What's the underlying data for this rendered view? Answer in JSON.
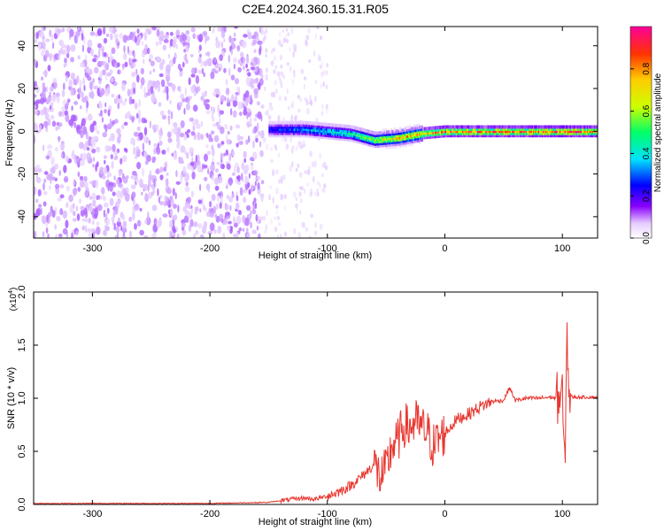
{
  "title": "C2E4.2024.360.15.31.R05",
  "chart_data": [
    {
      "type": "heatmap",
      "title": "C2E4.2024.360.15.31.R05",
      "xlabel": "Height of straight line (km)",
      "ylabel": "Frequency (Hz)",
      "xlim": [
        -350,
        130
      ],
      "ylim": [
        -50,
        49
      ],
      "x_ticks": [
        -300,
        -200,
        -100,
        0,
        100
      ],
      "y_ticks": [
        -40,
        -20,
        0,
        20,
        40
      ],
      "colorbar": {
        "label": "Normalized spectral amplitude",
        "range": [
          0,
          1
        ],
        "ticks": [
          0.0,
          0.2,
          0.4,
          0.6,
          0.8
        ],
        "colormap": [
          "#ffffff",
          "#d8b4ff",
          "#7a00ff",
          "#0000ff",
          "#00e0ff",
          "#00ff66",
          "#ccff00",
          "#ffcc00",
          "#ff3300",
          "#ff0099"
        ]
      },
      "features": {
        "noise_region_x": [
          -350,
          -155
        ],
        "sparse_noise_region_x": [
          -155,
          -100
        ],
        "signal_start_x": -152,
        "signal_band_frequency": 0,
        "signal_trace": [
          {
            "x": -150,
            "freq": 1,
            "amp": 0.35
          },
          {
            "x": -120,
            "freq": 1,
            "amp": 0.45
          },
          {
            "x": -100,
            "freq": 0,
            "amp": 0.5
          },
          {
            "x": -80,
            "freq": -1,
            "amp": 0.55
          },
          {
            "x": -60,
            "freq": -4,
            "amp": 0.7
          },
          {
            "x": -40,
            "freq": -3,
            "amp": 0.8
          },
          {
            "x": -20,
            "freq": -1,
            "amp": 0.85
          },
          {
            "x": 0,
            "freq": 0,
            "amp": 0.9
          },
          {
            "x": 50,
            "freq": 0,
            "amp": 0.9
          },
          {
            "x": 100,
            "freq": 0,
            "amp": 0.95
          },
          {
            "x": 130,
            "freq": 0,
            "amp": 0.9
          }
        ]
      }
    },
    {
      "type": "line",
      "xlabel": "Height of straight line (km)",
      "ylabel": "SNR (10 * v/v)",
      "y_multiplier": "(x10",
      "y_multiplier_exp": "4",
      "xlim": [
        -350,
        130
      ],
      "ylim": [
        0,
        2.0
      ],
      "x_ticks": [
        -300,
        -200,
        -100,
        0,
        100
      ],
      "y_ticks": [
        "0.0",
        "0.5",
        "1.0",
        "1.5",
        "2.0"
      ],
      "line_color": "#e8362f",
      "series": [
        {
          "x": [
            -350,
            -300,
            -250,
            -200,
            -150,
            -130,
            -120,
            -110,
            -100,
            -90,
            -80,
            -70,
            -60,
            -55,
            -50,
            -45,
            -40,
            -35,
            -30,
            -25,
            -20,
            -15,
            -10,
            -5,
            0,
            10,
            20,
            30,
            40,
            50,
            55,
            60,
            70,
            80,
            90,
            95,
            100,
            102,
            104,
            106,
            110,
            120,
            130
          ],
          "y": [
            0.01,
            0.01,
            0.01,
            0.01,
            0.02,
            0.05,
            0.06,
            0.05,
            0.08,
            0.12,
            0.18,
            0.27,
            0.38,
            0.25,
            0.32,
            0.55,
            0.6,
            0.75,
            0.72,
            0.78,
            0.72,
            0.68,
            0.55,
            0.62,
            0.67,
            0.8,
            0.85,
            0.92,
            0.97,
            0.98,
            1.1,
            0.98,
            1.0,
            1.0,
            1.01,
            1.0,
            1.02,
            0.3,
            1.6,
            1.01,
            1.01,
            1.01,
            1.01
          ]
        }
      ]
    }
  ]
}
